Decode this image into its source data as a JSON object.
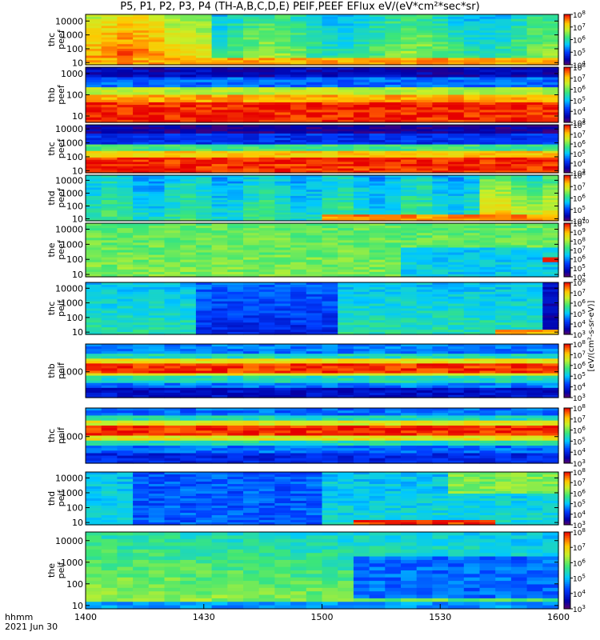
{
  "title": "P5, P1, P2, P3, P4 (TH-A,B,C,D,E) PEIF,PEEF EFlux eV/(eV*cm²*sec*sr)",
  "time_axis": {
    "row_label": "hhmm",
    "date_label": "2021 Jun 30",
    "ticks": [
      "1400",
      "1430",
      "1500",
      "1530",
      "1600"
    ],
    "range_minutes": [
      0,
      120
    ]
  },
  "colorbar_label": "[eV/(cm²-s-sr-eV)]",
  "chart_data": {
    "type": "heatmap",
    "x_unit": "minutes after 14:00 UT",
    "xlim": [
      0,
      120
    ],
    "y_scale": "log",
    "panels": [
      {
        "probe": "thc",
        "product": "peef",
        "y_ticks": [
          "10",
          "100",
          "1000",
          "10000"
        ],
        "ylim": [
          7,
          30000
        ],
        "colorbar": {
          "min_exp": 4,
          "max_exp": 8
        }
      },
      {
        "probe": "thb",
        "product": "peef",
        "y_ticks": [
          "10",
          "100",
          "1000"
        ],
        "ylim": [
          5,
          2000
        ],
        "colorbar": {
          "min_exp": 3,
          "max_exp": 8
        }
      },
      {
        "probe": "thc",
        "product": "peef",
        "y_ticks": [
          "10",
          "100",
          "1000",
          "10000"
        ],
        "ylim": [
          7,
          20000
        ],
        "colorbar": {
          "min_exp": 3,
          "max_exp": 8
        }
      },
      {
        "probe": "thd",
        "product": "peef",
        "y_ticks": [
          "10",
          "100",
          "1000",
          "10000"
        ],
        "ylim": [
          7,
          25000
        ],
        "colorbar": {
          "min_exp": 4,
          "max_exp": 8
        }
      },
      {
        "probe": "the",
        "product": "peef",
        "y_ticks": [
          "10",
          "100",
          "1000",
          "10000"
        ],
        "ylim": [
          7,
          25000
        ],
        "colorbar": {
          "min_exp": 4,
          "max_exp": 10
        }
      },
      {
        "probe": "thc",
        "product": "peif",
        "y_ticks": [
          "10",
          "100",
          "1000",
          "10000"
        ],
        "ylim": [
          7,
          25000
        ],
        "colorbar": {
          "min_exp": 3,
          "max_exp": 8
        }
      },
      {
        "probe": "thb",
        "product": "peif",
        "y_ticks": [
          "1000"
        ],
        "ylim": [
          50,
          25000
        ],
        "colorbar": {
          "min_exp": 3,
          "max_exp": 8
        }
      },
      {
        "probe": "thc",
        "product": "peif",
        "y_ticks": [
          "1000"
        ],
        "ylim": [
          50,
          25000
        ],
        "colorbar": {
          "min_exp": 3,
          "max_exp": 8
        }
      },
      {
        "probe": "thd",
        "product": "peif",
        "y_ticks": [
          "10",
          "100",
          "1000",
          "10000"
        ],
        "ylim": [
          7,
          25000
        ],
        "colorbar": {
          "min_exp": 3,
          "max_exp": 8
        }
      },
      {
        "probe": "the",
        "product": "peif",
        "y_ticks": [
          "10",
          "100",
          "1000",
          "10000"
        ],
        "ylim": [
          7,
          25000
        ],
        "colorbar": {
          "min_exp": 3,
          "max_exp": 8
        }
      }
    ]
  }
}
